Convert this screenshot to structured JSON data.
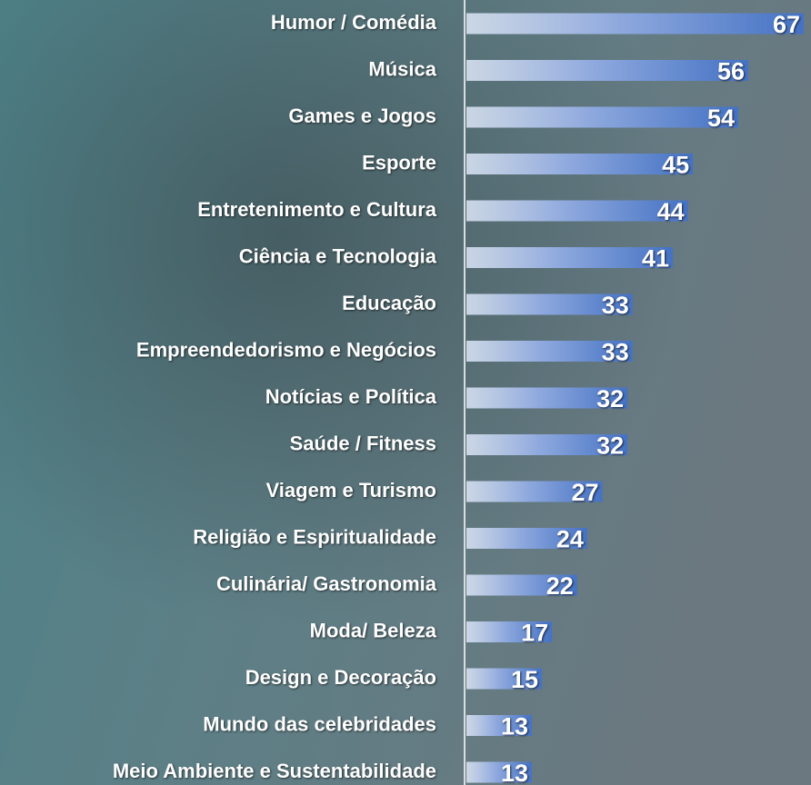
{
  "chart_data": {
    "type": "barh",
    "categories": [
      "Humor / Comédia",
      "Música",
      "Games e Jogos",
      "Esporte",
      "Entretenimento e Cultura",
      "Ciência e Tecnologia",
      "Educação",
      "Empreendedorismo e Negócios",
      "Notícias e Política",
      "Saúde / Fitness",
      "Viagem e Turismo",
      "Religião e Espiritualidade",
      "Culinária/ Gastronomia",
      "Moda/ Beleza",
      "Design e Decoração",
      "Mundo das celebridades",
      "Meio Ambiente e Sustentabilidade"
    ],
    "values": [
      67,
      56,
      54,
      45,
      44,
      41,
      33,
      33,
      32,
      32,
      27,
      24,
      22,
      17,
      15,
      13,
      13
    ],
    "color": "#4472c4",
    "xlim": [
      0,
      67
    ]
  }
}
